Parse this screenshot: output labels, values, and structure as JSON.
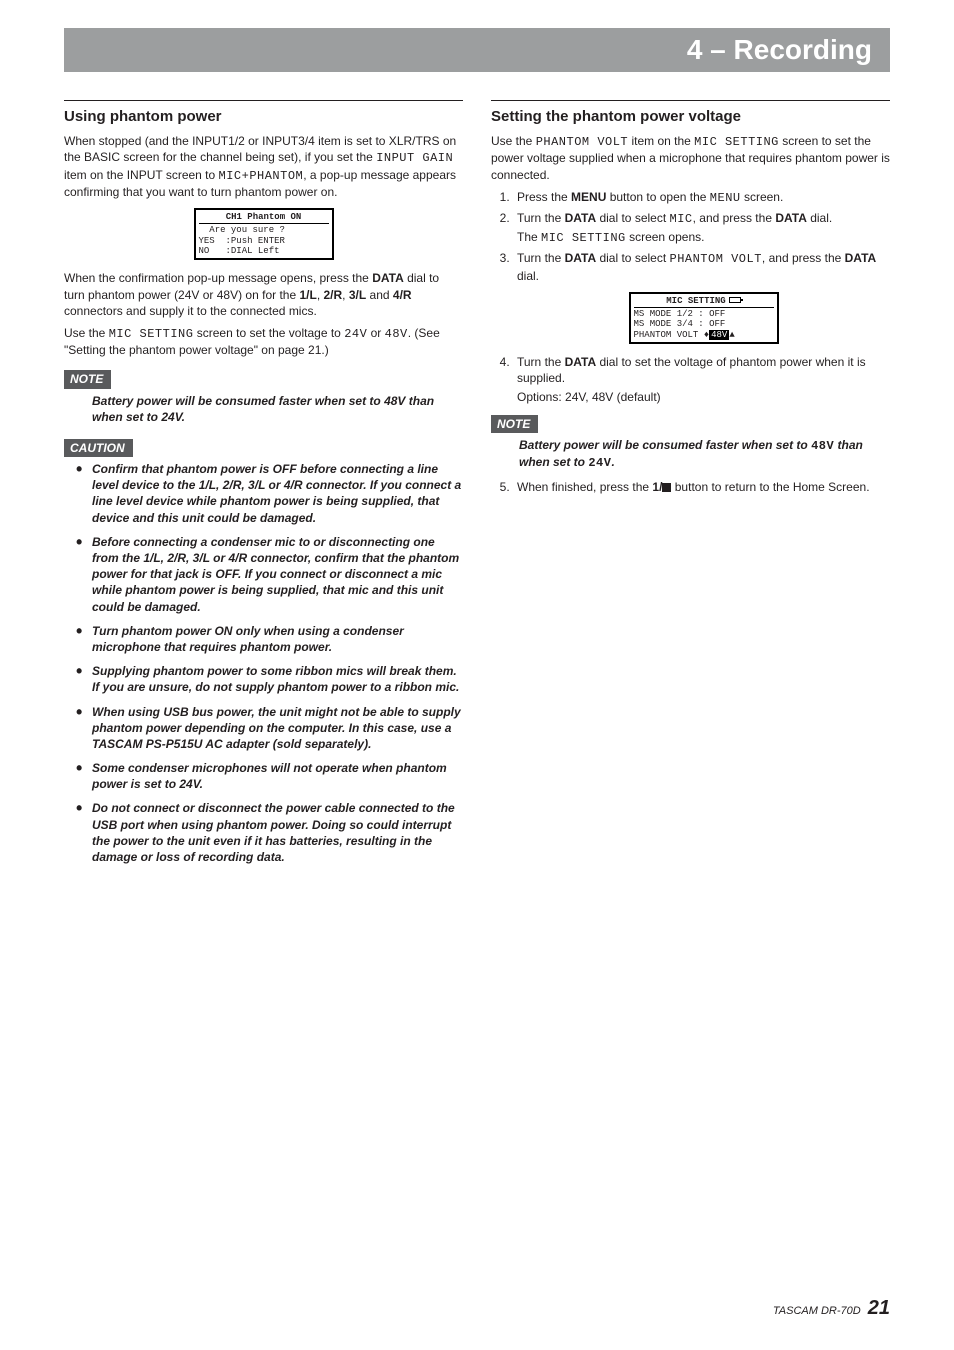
{
  "header": {
    "title": "4 – Recording"
  },
  "left": {
    "heading": "Using phantom power",
    "p1_a": "When stopped (and the INPUT1/2 or INPUT3/4 item is set to XLR/TRS on the BASIC screen for the channel being set), if you set the ",
    "p1_lcd1": "INPUT GAIN",
    "p1_b": " item on the INPUT screen to ",
    "p1_lcd2": "MIC+PHANTOM",
    "p1_c": ", a pop-up message appears confirming that you want to turn phantom power on.",
    "fig1": {
      "title": "CH1 Phantom ON",
      "l1": "  Are you sure ?",
      "l2": "YES  :Push ENTER",
      "l3": "NO   :DIAL Left"
    },
    "p2_a": "When the confirmation pop-up message opens, press the ",
    "p2_b": "DATA",
    "p2_c": " dial to turn phantom power (24V or 48V) on for the ",
    "p2_d": "1/L",
    "p2_e": ", ",
    "p2_f": "2/R",
    "p2_g": ", ",
    "p2_h": "3/L",
    "p2_i": " and ",
    "p2_j": "4/R",
    "p2_k": " connectors and supply it to the connected mics.",
    "p3_a": "Use the ",
    "p3_lcd1": "MIC SETTING",
    "p3_b": " screen to set the voltage to ",
    "p3_lcd2": "24V",
    "p3_c": " or ",
    "p3_lcd3": "48V",
    "p3_d": ". (See \"Setting the phantom power voltage\" on page 21.)",
    "note_label": "NOTE",
    "note_text": "Battery power will be consumed faster when set to 48V than when set to 24V.",
    "caution_label": "CAUTION",
    "cautions": [
      "Confirm that phantom power is OFF before connecting a line level device to the 1/L, 2/R, 3/L or 4/R connector. If you connect a line level device while phantom power is being supplied, that device and this unit could be damaged.",
      "Before connecting a condenser mic to or disconnecting one from the 1/L, 2/R, 3/L or 4/R connector, confirm that the phantom power for that jack is OFF. If you connect or disconnect a mic while phantom power is being supplied, that mic and this unit could be damaged.",
      "Turn phantom power ON only when using a condenser microphone that requires phantom power.",
      "Supplying phantom power to some ribbon mics will break them. If you are unsure, do not supply phantom power to a ribbon mic.",
      "When using USB bus power, the unit might not be able to supply phantom power depending on the computer. In this case, use a TASCAM PS-P515U AC adapter (sold separately).",
      "Some condenser microphones will not operate when phantom power is set to 24V.",
      "Do not connect or disconnect the power cable connected to the USB port when using phantom power. Doing so could interrupt the power to the unit even if it has batteries, resulting in the damage or loss of recording data."
    ]
  },
  "right": {
    "heading": "Setting the phantom power voltage",
    "p1_a": "Use the ",
    "p1_lcd1": "PHANTOM VOLT",
    "p1_b": " item on the ",
    "p1_lcd2": "MIC SETTING",
    "p1_c": " screen to set the power voltage supplied when a microphone that requires phantom power is connected.",
    "s1_a": "Press the ",
    "s1_b": "MENU",
    "s1_c": " button to open the ",
    "s1_lcd": "MENU",
    "s1_d": " screen.",
    "s2_a": "Turn the ",
    "s2_b": "DATA",
    "s2_c": " dial to select ",
    "s2_lcd": "MIC",
    "s2_d": ", and press the ",
    "s2_e": "DATA",
    "s2_f": " dial.",
    "s2_sub_a": "The ",
    "s2_sub_lcd": "MIC SETTING",
    "s2_sub_b": " screen opens.",
    "s3_a": "Turn the ",
    "s3_b": "DATA",
    "s3_c": " dial to select ",
    "s3_lcd": "PHANTOM VOLT",
    "s3_d": ", and press the ",
    "s3_e": "DATA",
    "s3_f": " dial.",
    "fig2": {
      "title": "MIC SETTING",
      "r1": "MS MODE 1/2 : OFF",
      "r2": "MS MODE 3/4 : OFF",
      "r3a": "PHANTOM VOLT ",
      "r3b": "48V"
    },
    "s4_a": "Turn the ",
    "s4_b": "DATA",
    "s4_c": " dial to set the voltage of phantom power when it is supplied.",
    "s4_sub": "Options: 24V, 48V (default)",
    "note_label": "NOTE",
    "note_a": "Battery power will be consumed faster when set to ",
    "note_lcd1": "48V",
    "note_b": " than when set to ",
    "note_lcd2": "24V",
    "note_c": ".",
    "s5_a": "When finished, press the ",
    "s5_b": "1/",
    "s5_c": " button to return to the Home Screen."
  },
  "footer": {
    "model": "TASCAM DR-70D ",
    "page": "21"
  }
}
